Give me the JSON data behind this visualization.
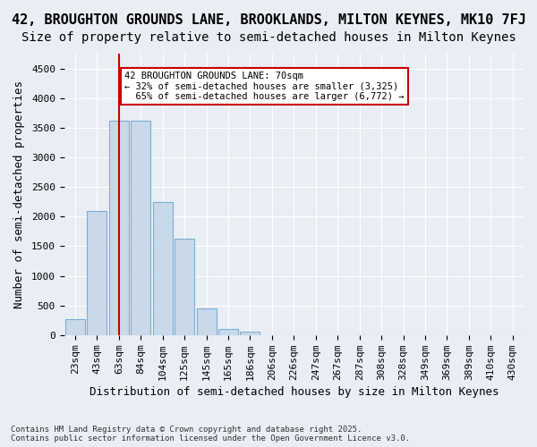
{
  "title_line1": "42, BROUGHTON GROUNDS LANE, BROOKLANDS, MILTON KEYNES, MK10 7FJ",
  "title_line2": "Size of property relative to semi-detached houses in Milton Keynes",
  "xlabel": "Distribution of semi-detached houses by size in Milton Keynes",
  "ylabel": "Number of semi-detached properties",
  "footnote": "Contains HM Land Registry data © Crown copyright and database right 2025.\nContains public sector information licensed under the Open Government Licence v3.0.",
  "bins": [
    "23sqm",
    "43sqm",
    "63sqm",
    "84sqm",
    "104sqm",
    "125sqm",
    "145sqm",
    "165sqm",
    "186sqm",
    "206sqm",
    "226sqm",
    "247sqm",
    "267sqm",
    "287sqm",
    "308sqm",
    "328sqm",
    "349sqm",
    "369sqm",
    "389sqm",
    "410sqm",
    "430sqm"
  ],
  "bar_values": [
    270,
    2100,
    3625,
    3625,
    2250,
    1625,
    450,
    100,
    55,
    0,
    0,
    0,
    0,
    0,
    0,
    0,
    0,
    0,
    0,
    0,
    0
  ],
  "bar_color": "#c9d9ea",
  "bar_edge_color": "#7bafd4",
  "property_line_x": 2,
  "property_sqm": 70,
  "property_label": "42 BROUGHTON GROUNDS LANE: 70sqm",
  "smaller_pct": 32,
  "smaller_count": 3325,
  "larger_pct": 65,
  "larger_count": 6772,
  "annotation_box_color": "#ffffff",
  "annotation_box_edge": "#cc0000",
  "vline_color": "#cc0000",
  "ylim": [
    0,
    4750
  ],
  "yticks": [
    0,
    500,
    1000,
    1500,
    2000,
    2500,
    3000,
    3500,
    4000,
    4500
  ],
  "background_color": "#e8eef4",
  "title_fontsize": 11,
  "subtitle_fontsize": 10,
  "axis_label_fontsize": 9,
  "tick_fontsize": 8
}
